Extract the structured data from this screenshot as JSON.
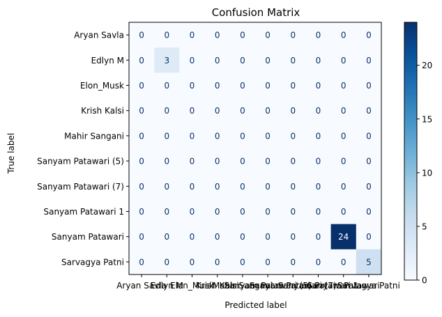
{
  "chart_data": {
    "type": "heatmap",
    "title": "Confusion Matrix",
    "xlabel": "Predicted label",
    "ylabel": "True label",
    "labels": [
      "Aryan Savla",
      "Edlyn M",
      "Elon_Musk",
      "Krish Kalsi",
      "Mahir Sangani",
      "Sanyam Patawari (5)",
      "Sanyam Patawari (7)",
      "Sanyam Patawari 1",
      "Sanyam Patawari",
      "Sarvagya Patni"
    ],
    "matrix": [
      [
        0,
        0,
        0,
        0,
        0,
        0,
        0,
        0,
        0,
        0
      ],
      [
        0,
        3,
        0,
        0,
        0,
        0,
        0,
        0,
        0,
        0
      ],
      [
        0,
        0,
        0,
        0,
        0,
        0,
        0,
        0,
        0,
        0
      ],
      [
        0,
        0,
        0,
        0,
        0,
        0,
        0,
        0,
        0,
        0
      ],
      [
        0,
        0,
        0,
        0,
        0,
        0,
        0,
        0,
        0,
        0
      ],
      [
        0,
        0,
        0,
        0,
        0,
        0,
        0,
        0,
        0,
        0
      ],
      [
        0,
        0,
        0,
        0,
        0,
        0,
        0,
        0,
        0,
        0
      ],
      [
        0,
        0,
        0,
        0,
        0,
        0,
        0,
        0,
        0,
        0
      ],
      [
        0,
        0,
        0,
        0,
        0,
        0,
        0,
        0,
        24,
        0
      ],
      [
        0,
        0,
        0,
        0,
        0,
        0,
        0,
        0,
        0,
        5
      ]
    ],
    "colormap": "Blues",
    "colorbar": {
      "vmin": 0,
      "vmax": 24,
      "ticks": [
        0,
        5,
        10,
        15,
        20
      ]
    }
  }
}
